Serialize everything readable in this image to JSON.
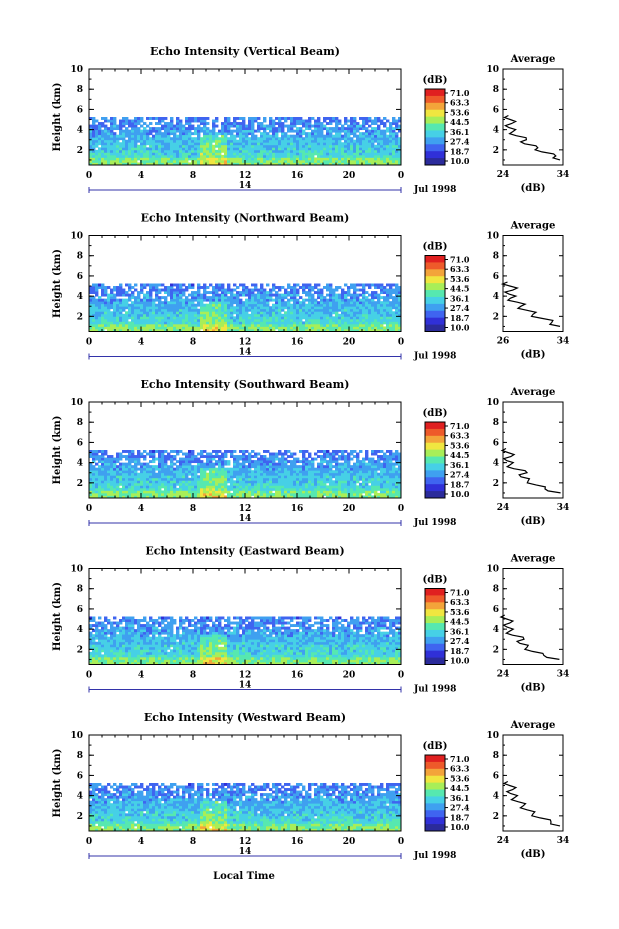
{
  "figure": {
    "xlabel": "Local Time",
    "date_label": "Jul 1998",
    "day_label": "14",
    "ylabel": "Height (km)",
    "unit": "(dB)",
    "avg_title": "Average",
    "colorbar_ticks": [
      "71.0",
      "63.3",
      "53.6",
      "44.5",
      "36.1",
      "27.4",
      "18.7",
      "10.0"
    ],
    "colorbar_colors": [
      "#2b2b9b",
      "#3030d8",
      "#3f64f0",
      "#3fa0f0",
      "#46d0e6",
      "#56e8b0",
      "#a8ee58",
      "#f0e640",
      "#f3a43a",
      "#ee5a2a",
      "#e02020"
    ]
  },
  "chart_data": [
    {
      "type": "heatmap",
      "title": "Echo Intensity (Vertical Beam)",
      "xlabel": "Local Time",
      "ylabel": "Height (km)",
      "x_ticks": [
        "0",
        "4",
        "8",
        "12",
        "16",
        "20",
        "0"
      ],
      "y_ticks": [
        "2",
        "4",
        "6",
        "8",
        "10"
      ],
      "xlim": [
        0,
        24
      ],
      "ylim": [
        0.5,
        10
      ],
      "echo_top_km": 5.2,
      "colorbar": {
        "label": "(dB)",
        "range": [
          10.0,
          71.0
        ]
      },
      "average_profile": {
        "xlabel": "(dB)",
        "x_ticks": [
          "24",
          "34"
        ],
        "xlim": [
          24,
          34
        ],
        "height_km": [
          1.0,
          1.4,
          1.8,
          2.2,
          2.6,
          3.0,
          3.4,
          3.8,
          4.2,
          4.6,
          5.0,
          5.4
        ],
        "db": [
          33.5,
          32.8,
          30.5,
          29.8,
          27.6,
          27.9,
          26.2,
          25.6,
          25.0,
          25.4,
          25.2,
          24.9
        ]
      }
    },
    {
      "type": "heatmap",
      "title": "Echo Intensity (Northward Beam)",
      "xlabel": "Local Time",
      "ylabel": "Height (km)",
      "x_ticks": [
        "0",
        "4",
        "8",
        "12",
        "16",
        "20",
        "0"
      ],
      "y_ticks": [
        "2",
        "4",
        "6",
        "8",
        "10"
      ],
      "xlim": [
        0,
        24
      ],
      "ylim": [
        0.5,
        10
      ],
      "echo_top_km": 5.2,
      "colorbar": {
        "label": "(dB)",
        "range": [
          10.0,
          71.0
        ]
      },
      "average_profile": {
        "xlabel": "(dB)",
        "x_ticks": [
          "26",
          "34"
        ],
        "xlim": [
          26,
          34
        ],
        "height_km": [
          1.0,
          1.4,
          1.8,
          2.2,
          2.6,
          3.0,
          3.4,
          3.8,
          4.2,
          4.6,
          5.0,
          5.4
        ],
        "db": [
          33.6,
          32.5,
          31.2,
          30.0,
          29.2,
          28.4,
          27.9,
          27.0,
          26.8,
          27.3,
          26.9,
          26.6
        ]
      }
    },
    {
      "type": "heatmap",
      "title": "Echo Intensity (Southward Beam)",
      "xlabel": "Local Time",
      "ylabel": "Height (km)",
      "x_ticks": [
        "0",
        "4",
        "8",
        "12",
        "16",
        "20",
        "0"
      ],
      "y_ticks": [
        "2",
        "4",
        "6",
        "8",
        "10"
      ],
      "xlim": [
        0,
        24
      ],
      "ylim": [
        0.5,
        10
      ],
      "echo_top_km": 5.2,
      "colorbar": {
        "label": "(dB)",
        "range": [
          10.0,
          71.0
        ]
      },
      "average_profile": {
        "xlabel": "(dB)",
        "x_ticks": [
          "24",
          "34"
        ],
        "xlim": [
          24,
          34
        ],
        "height_km": [
          1.0,
          1.4,
          1.8,
          2.2,
          2.6,
          3.0,
          3.4,
          3.8,
          4.2,
          4.6,
          5.0,
          5.4
        ],
        "db": [
          33.6,
          31.0,
          29.5,
          28.2,
          27.0,
          28.0,
          25.8,
          25.2,
          24.6,
          25.3,
          24.8,
          24.5
        ]
      }
    },
    {
      "type": "heatmap",
      "title": "Echo Intensity (Eastward Beam)",
      "xlabel": "Local Time",
      "ylabel": "Height (km)",
      "x_ticks": [
        "0",
        "4",
        "8",
        "12",
        "16",
        "20",
        "0"
      ],
      "y_ticks": [
        "2",
        "4",
        "6",
        "8",
        "10"
      ],
      "xlim": [
        0,
        24
      ],
      "ylim": [
        0.5,
        10
      ],
      "echo_top_km": 5.2,
      "colorbar": {
        "label": "(dB)",
        "range": [
          10.0,
          71.0
        ]
      },
      "average_profile": {
        "xlabel": "(dB)",
        "x_ticks": [
          "24",
          "34"
        ],
        "xlim": [
          24,
          34
        ],
        "height_km": [
          1.0,
          1.4,
          1.8,
          2.2,
          2.6,
          3.0,
          3.4,
          3.8,
          4.2,
          4.6,
          5.0,
          5.4
        ],
        "db": [
          33.4,
          30.8,
          28.9,
          28.0,
          26.8,
          27.5,
          25.6,
          25.1,
          24.7,
          25.1,
          24.6,
          24.3
        ]
      }
    },
    {
      "type": "heatmap",
      "title": "Echo Intensity (Westward Beam)",
      "xlabel": "Local Time",
      "ylabel": "Height (km)",
      "x_ticks": [
        "0",
        "4",
        "8",
        "12",
        "16",
        "20",
        "0"
      ],
      "y_ticks": [
        "2",
        "4",
        "6",
        "8",
        "10"
      ],
      "xlim": [
        0,
        24
      ],
      "ylim": [
        0.5,
        10
      ],
      "echo_top_km": 5.2,
      "colorbar": {
        "label": "(dB)",
        "range": [
          10.0,
          71.0
        ]
      },
      "average_profile": {
        "xlabel": "(dB)",
        "x_ticks": [
          "24",
          "34"
        ],
        "xlim": [
          24,
          34
        ],
        "height_km": [
          1.0,
          1.4,
          1.8,
          2.2,
          2.6,
          3.0,
          3.4,
          3.8,
          4.2,
          4.6,
          5.0,
          5.4
        ],
        "db": [
          33.5,
          32.0,
          30.2,
          29.0,
          28.0,
          27.4,
          26.5,
          25.9,
          25.3,
          25.6,
          25.1,
          24.8
        ]
      }
    }
  ]
}
